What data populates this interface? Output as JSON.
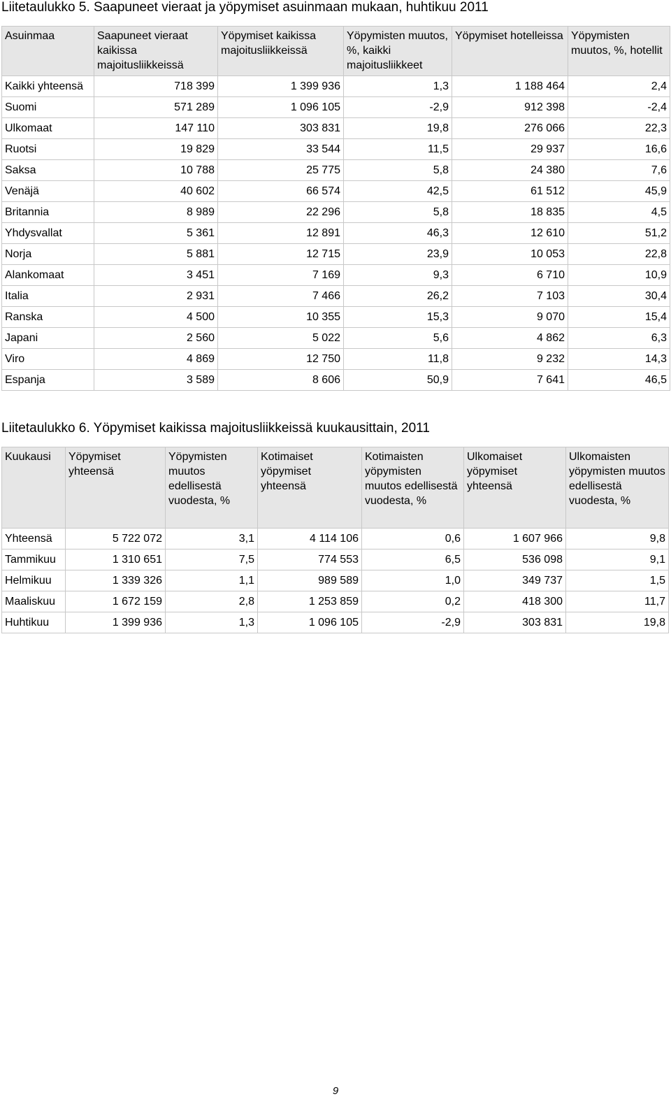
{
  "table5": {
    "caption": "Liitetaulukko 5. Saapuneet vieraat ja yöpymiset asuinmaan mukaan, huhtikuu 2011",
    "headers": [
      "Asuinmaa",
      "Saapuneet vieraat kaikissa majoitusliikkeissä",
      "Yöpymiset kaikissa majoitusliikkeissä",
      "Yöpymisten muutos, %, kaikki majoitusliikkeet",
      "Yöpymiset hotelleissa",
      "Yöpymisten muutos, %, hotellit"
    ],
    "rows": [
      [
        "Kaikki yhteensä",
        "718 399",
        "1 399 936",
        "1,3",
        "1 188 464",
        "2,4"
      ],
      [
        "Suomi",
        "571 289",
        "1 096 105",
        "-2,9",
        "912 398",
        "-2,4"
      ],
      [
        "Ulkomaat",
        "147 110",
        "303 831",
        "19,8",
        "276 066",
        "22,3"
      ],
      [
        "Ruotsi",
        "19 829",
        "33 544",
        "11,5",
        "29 937",
        "16,6"
      ],
      [
        "Saksa",
        "10 788",
        "25 775",
        "5,8",
        "24 380",
        "7,6"
      ],
      [
        "Venäjä",
        "40 602",
        "66 574",
        "42,5",
        "61 512",
        "45,9"
      ],
      [
        "Britannia",
        "8 989",
        "22 296",
        "5,8",
        "18 835",
        "4,5"
      ],
      [
        "Yhdysvallat",
        "5 361",
        "12 891",
        "46,3",
        "12 610",
        "51,2"
      ],
      [
        "Norja",
        "5 881",
        "12 715",
        "23,9",
        "10 053",
        "22,8"
      ],
      [
        "Alankomaat",
        "3 451",
        "7 169",
        "9,3",
        "6 710",
        "10,9"
      ],
      [
        "Italia",
        "2 931",
        "7 466",
        "26,2",
        "7 103",
        "30,4"
      ],
      [
        "Ranska",
        "4 500",
        "10 355",
        "15,3",
        "9 070",
        "15,4"
      ],
      [
        "Japani",
        "2 560",
        "5 022",
        "5,6",
        "4 862",
        "6,3"
      ],
      [
        "Viro",
        "4 869",
        "12 750",
        "11,8",
        "9 232",
        "14,3"
      ],
      [
        "Espanja",
        "3 589",
        "8 606",
        "50,9",
        "7 641",
        "46,5"
      ]
    ]
  },
  "table6": {
    "caption": "Liitetaulukko 6. Yöpymiset kaikissa majoitusliikkeissä kuukausittain, 2011",
    "headers": [
      "Kuukausi",
      "Yöpymiset yhteensä",
      "Yöpymisten muutos edellisestä vuodesta, %",
      "Kotimaiset yöpymiset yhteensä",
      "Kotimaisten yöpymisten muutos edellisestä vuodesta, %",
      "Ulkomaiset yöpymiset yhteensä",
      "Ulkomaisten yöpymisten muutos edellisestä vuodesta, %"
    ],
    "rows": [
      [
        "Yhteensä",
        "5 722 072",
        "3,1",
        "4 114 106",
        "0,6",
        "1 607 966",
        "9,8"
      ],
      [
        "Tammikuu",
        "1 310 651",
        "7,5",
        "774 553",
        "6,5",
        "536 098",
        "9,1"
      ],
      [
        "Helmikuu",
        "1 339 326",
        "1,1",
        "989 589",
        "1,0",
        "349 737",
        "1,5"
      ],
      [
        "Maaliskuu",
        "1 672 159",
        "2,8",
        "1 253 859",
        "0,2",
        "418 300",
        "11,7"
      ],
      [
        "Huhtikuu",
        "1 399 936",
        "1,3",
        "1 096 105",
        "-2,9",
        "303 831",
        "19,8"
      ]
    ]
  },
  "footer": {
    "page_number": "9"
  }
}
